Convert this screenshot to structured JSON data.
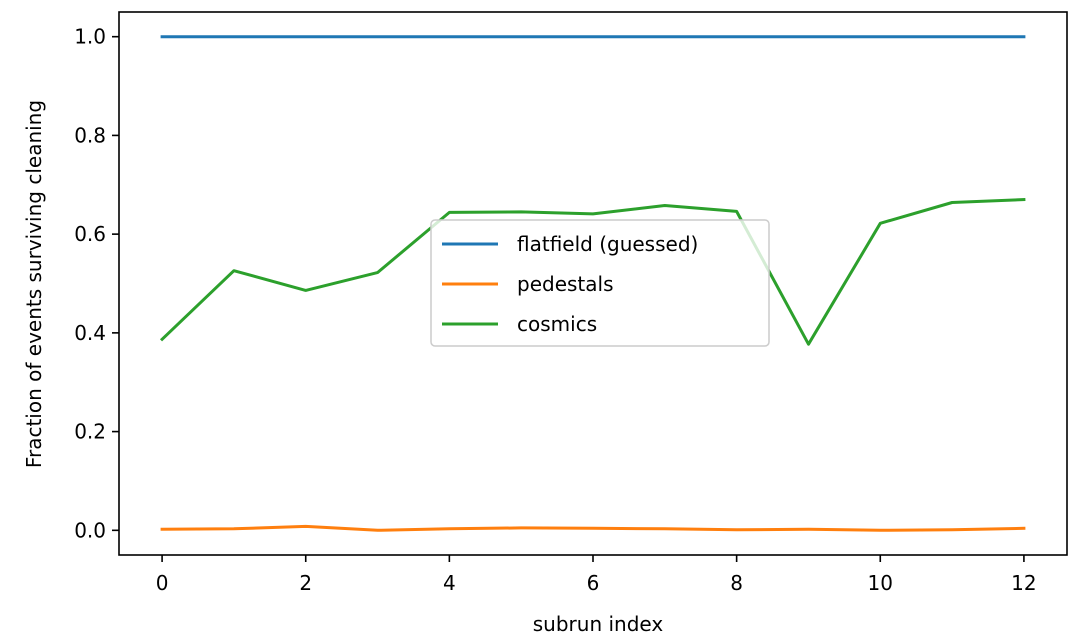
{
  "chart_data": {
    "type": "line",
    "xlabel": "subrun index",
    "ylabel": "Fraction of events surviving cleaning",
    "xlim": [
      -0.6,
      12.6
    ],
    "ylim": [
      -0.05,
      1.05
    ],
    "xticks": [
      0,
      2,
      4,
      6,
      8,
      10,
      12
    ],
    "xtick_labels": [
      "0",
      "2",
      "4",
      "6",
      "8",
      "10",
      "12"
    ],
    "yticks": [
      0.0,
      0.2,
      0.4,
      0.6,
      0.8,
      1.0
    ],
    "ytick_labels": [
      "0.0",
      "0.2",
      "0.4",
      "0.6",
      "0.8",
      "1.0"
    ],
    "grid": false,
    "legend_position": "center",
    "x": [
      0,
      1,
      2,
      3,
      4,
      5,
      6,
      7,
      8,
      9,
      10,
      11,
      12
    ],
    "series": [
      {
        "name": "flatfield (guessed)",
        "color": "#1f77b4",
        "values": [
          1.0,
          1.0,
          1.0,
          1.0,
          1.0,
          1.0,
          1.0,
          1.0,
          1.0,
          1.0,
          1.0,
          1.0,
          1.0
        ]
      },
      {
        "name": "pedestals",
        "color": "#ff7f0e",
        "values": [
          0.002,
          0.003,
          0.008,
          0.0,
          0.003,
          0.005,
          0.004,
          0.003,
          0.001,
          0.002,
          0.0,
          0.001,
          0.004
        ]
      },
      {
        "name": "cosmics",
        "color": "#2ca02c",
        "values": [
          0.387,
          0.526,
          0.486,
          0.522,
          0.644,
          0.645,
          0.641,
          0.658,
          0.646,
          0.377,
          0.622,
          0.664,
          0.67
        ]
      }
    ]
  }
}
